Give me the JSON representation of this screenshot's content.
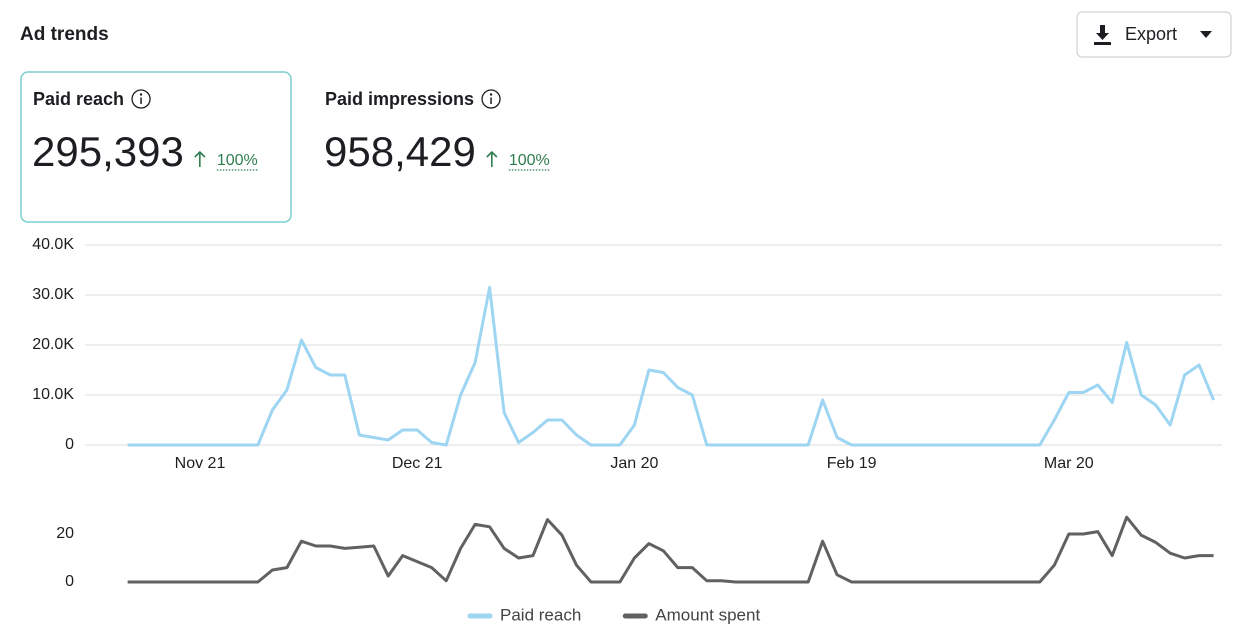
{
  "header": {
    "title": "Ad trends",
    "export": "Export"
  },
  "metrics": [
    {
      "label": "Paid reach",
      "value": "295,393",
      "change": "100%"
    },
    {
      "label": "Paid impressions",
      "value": "958,429",
      "change": "100%"
    }
  ],
  "chart_data": {
    "type": "line",
    "categories": [
      null,
      null,
      null,
      null,
      null,
      "Nov 21",
      null,
      null,
      null,
      null,
      null,
      null,
      null,
      null,
      null,
      null,
      null,
      null,
      null,
      null,
      "Dec 21",
      null,
      null,
      null,
      null,
      null,
      null,
      null,
      null,
      null,
      null,
      null,
      null,
      null,
      null,
      "Jan 20",
      null,
      null,
      null,
      null,
      null,
      null,
      null,
      null,
      null,
      null,
      null,
      null,
      null,
      null,
      "Feb 19",
      null,
      null,
      null,
      null,
      null,
      null,
      null,
      null,
      null,
      null,
      null,
      null,
      null,
      null,
      "Mar 20",
      null,
      null,
      null,
      null,
      null,
      null,
      null,
      null,
      null,
      null
    ],
    "series": [
      {
        "name": "Paid reach",
        "color": "#9dd5f2",
        "values": [
          0,
          0,
          0,
          0,
          0,
          0,
          0,
          0,
          0,
          0,
          7000,
          11000,
          21000,
          15500,
          14000,
          14000,
          2000,
          1500,
          1000,
          3000,
          3000,
          500,
          0,
          10000,
          16500,
          31500,
          6500,
          500,
          2500,
          5000,
          5000,
          2000,
          0,
          0,
          0,
          4000,
          15000,
          14500,
          11500,
          10000,
          0,
          0,
          0,
          0,
          0,
          0,
          0,
          0,
          9000,
          1500,
          0,
          0,
          0,
          0,
          0,
          0,
          0,
          0,
          0,
          0,
          0,
          0,
          0,
          0,
          5000,
          10500,
          10500,
          12000,
          8500,
          20500,
          10000,
          8000,
          4000,
          14000,
          16000,
          9000
        ]
      },
      {
        "name": "Amount spent",
        "color": "#616161",
        "axis": "y2",
        "values": [
          0,
          0,
          0,
          0,
          0,
          0,
          0,
          0,
          0,
          0,
          5,
          6,
          17,
          15,
          15,
          14,
          14.5,
          15,
          2.5,
          11,
          8.5,
          6,
          0.5,
          14,
          24,
          23,
          14,
          10,
          11,
          26,
          19.5,
          7,
          0,
          0,
          0,
          10,
          16,
          13,
          6,
          6,
          0.5,
          0.5,
          0,
          0,
          0,
          0,
          0,
          0,
          17,
          3,
          0,
          0,
          0,
          0,
          0,
          0,
          0,
          0,
          0,
          0,
          0,
          0,
          0,
          0,
          7,
          20,
          20,
          21,
          11,
          27,
          19.5,
          16.5,
          12,
          10,
          11,
          11
        ]
      }
    ],
    "ylim": [
      0,
      40000
    ],
    "yticks": [
      {
        "value": 0,
        "label": "0"
      },
      {
        "value": 10000,
        "label": "10.0K"
      },
      {
        "value": 20000,
        "label": "20.0K"
      },
      {
        "value": 30000,
        "label": "30.0K"
      },
      {
        "value": 40000,
        "label": "40.0K"
      }
    ],
    "y2lim": [
      0,
      28
    ],
    "y2ticks": [
      0,
      20
    ],
    "grid": true,
    "legend": "bottom"
  }
}
